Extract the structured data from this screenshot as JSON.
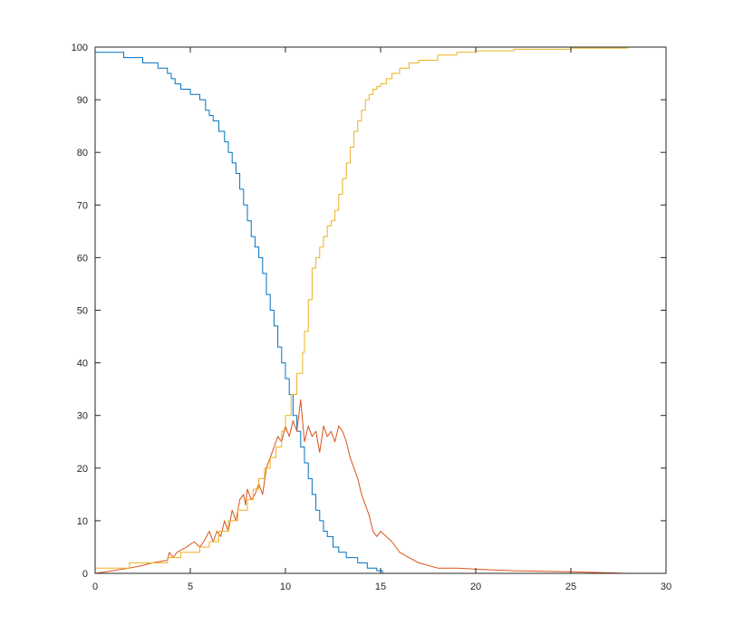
{
  "chart_data": {
    "type": "line",
    "title": "",
    "xlabel": "",
    "ylabel": "",
    "xlim": [
      0,
      30
    ],
    "ylim": [
      0,
      100
    ],
    "xticks": [
      0,
      5,
      10,
      15,
      20,
      25,
      30
    ],
    "yticks": [
      0,
      10,
      20,
      30,
      40,
      50,
      60,
      70,
      80,
      90,
      100
    ],
    "grid": false,
    "legend": "none",
    "series": [
      {
        "color": "#0072BD",
        "step": true,
        "x": [
          0,
          1.5,
          2.5,
          3.3,
          3.8,
          4.0,
          4.2,
          4.5,
          5.0,
          5.5,
          5.8,
          6.0,
          6.2,
          6.5,
          6.8,
          7.0,
          7.2,
          7.4,
          7.6,
          7.8,
          8.0,
          8.2,
          8.4,
          8.6,
          8.8,
          9.0,
          9.2,
          9.4,
          9.6,
          9.8,
          10.0,
          10.2,
          10.4,
          10.6,
          10.8,
          11.0,
          11.2,
          11.4,
          11.6,
          11.8,
          12.0,
          12.2,
          12.5,
          12.8,
          13.2,
          13.8,
          14.3,
          14.8,
          15.1
        ],
        "y": [
          99,
          98,
          97,
          96,
          95,
          94,
          93,
          92,
          91,
          90,
          88,
          87,
          86,
          84,
          82,
          80,
          78,
          76,
          73,
          70,
          67,
          64,
          62,
          60,
          57,
          53,
          50,
          47,
          43,
          40,
          37,
          34,
          30,
          27,
          24,
          21,
          18,
          15,
          12,
          10,
          8,
          7,
          5,
          4,
          3,
          2,
          1,
          0.5,
          0
        ]
      },
      {
        "color": "#D95319",
        "step": false,
        "x": [
          0,
          1.8,
          2.5,
          3.0,
          3.8,
          3.9,
          4.1,
          4.3,
          4.8,
          5.2,
          5.5,
          5.7,
          6.0,
          6.2,
          6.4,
          6.6,
          6.8,
          7.0,
          7.2,
          7.4,
          7.6,
          7.8,
          7.9,
          8.0,
          8.2,
          8.4,
          8.6,
          8.8,
          9.0,
          9.2,
          9.4,
          9.6,
          9.8,
          10.0,
          10.2,
          10.4,
          10.6,
          10.8,
          11.0,
          11.2,
          11.4,
          11.6,
          11.8,
          12.0,
          12.2,
          12.4,
          12.6,
          12.8,
          13.0,
          13.2,
          13.4,
          13.6,
          13.8,
          14.0,
          14.2,
          14.4,
          14.6,
          14.8,
          15.0,
          15.3,
          15.6,
          16.0,
          17.0,
          18.0,
          19.0,
          20.0,
          22.0,
          25.0,
          28.0
        ],
        "y": [
          0,
          1,
          1.5,
          2,
          2.5,
          4,
          3,
          4,
          5,
          6,
          5,
          6,
          8,
          6,
          8,
          7,
          10,
          8,
          12,
          10,
          14,
          15,
          13,
          16,
          14,
          15,
          17,
          15,
          20,
          22,
          24,
          26,
          25,
          28,
          26,
          29,
          27,
          33,
          25,
          28,
          26,
          27,
          23,
          28,
          26,
          27,
          25,
          28,
          27,
          25,
          22,
          20,
          18,
          15,
          13,
          11,
          8,
          7,
          8,
          7,
          6,
          4,
          2,
          1,
          1,
          0.8,
          0.5,
          0.3,
          0
        ]
      },
      {
        "color": "#EDB120",
        "step": true,
        "x": [
          0,
          1.8,
          3.8,
          4.5,
          5.5,
          6.0,
          6.5,
          7.0,
          7.5,
          8.0,
          8.3,
          8.6,
          8.9,
          9.2,
          9.5,
          9.8,
          10.0,
          10.3,
          10.6,
          10.9,
          11.0,
          11.2,
          11.4,
          11.6,
          11.8,
          12.0,
          12.2,
          12.4,
          12.6,
          12.8,
          13.0,
          13.2,
          13.4,
          13.6,
          13.8,
          14.0,
          14.2,
          14.4,
          14.6,
          14.8,
          15.0,
          15.3,
          15.6,
          16.0,
          16.5,
          17.0,
          18.0,
          19.0,
          20.0,
          22.0,
          25.0,
          28.0
        ],
        "y": [
          1,
          2,
          3,
          4,
          5,
          6,
          8,
          10,
          12,
          14,
          16,
          18,
          20,
          22,
          24,
          27,
          30,
          34,
          38,
          42,
          46,
          52,
          58,
          60,
          62,
          64,
          66,
          67,
          69,
          72,
          75,
          78,
          81,
          84,
          86,
          88,
          90,
          91,
          92,
          92.5,
          93,
          94,
          95,
          96,
          97,
          97.5,
          98.5,
          99,
          99.3,
          99.6,
          99.8,
          100
        ]
      },
      {
        "color": "#7E2F8E",
        "step": false,
        "x": [
          0,
          28
        ],
        "y": [
          0,
          0
        ]
      },
      {
        "color": "#77AC30",
        "step": false,
        "x": [
          0,
          28
        ],
        "y": [
          100,
          100
        ]
      }
    ]
  }
}
